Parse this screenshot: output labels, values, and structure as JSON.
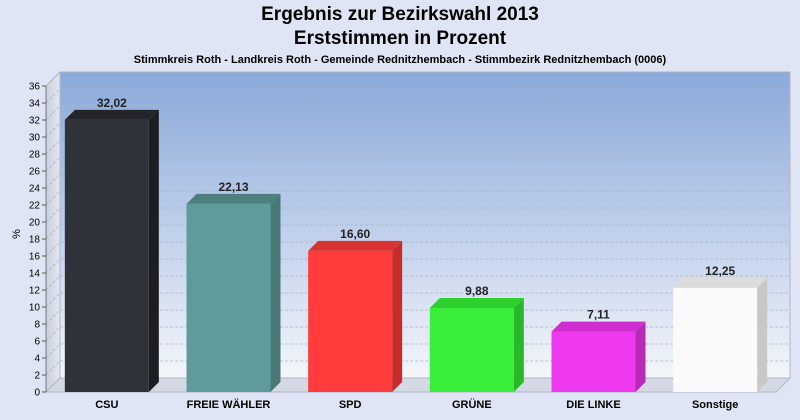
{
  "chart_data": {
    "type": "bar",
    "title": "Ergebnis zur Bezirkswahl 2013",
    "subtitle": "Erststimmen in Prozent",
    "caption": "Stimmkreis Roth - Landkreis Roth - Gemeinde Rednitzhembach - Stimmbezirk Rednitzhembach (0006)",
    "ylabel": "%",
    "xlabel": "",
    "ylim": [
      0,
      36
    ],
    "ytick_step": 2,
    "grid": true,
    "categories": [
      "CSU",
      "FREIE WÄHLER",
      "SPD",
      "GRÜNE",
      "DIE LINKE",
      "Sonstige"
    ],
    "values": [
      32.02,
      22.13,
      16.6,
      9.88,
      7.11,
      12.25
    ],
    "value_labels": [
      "32,02",
      "22,13",
      "16,60",
      "9,88",
      "7,11",
      "12,25"
    ],
    "colors": [
      "#2f3239",
      "#5f9b9a",
      "#ff3b3b",
      "#39ee39",
      "#ee39ee",
      "#fafafa"
    ],
    "side_colors": [
      "#1c1e22",
      "#4a7877",
      "#c92a2a",
      "#29b829",
      "#b82ab8",
      "#c8c8c8"
    ],
    "top_colors": [
      "#23252a",
      "#4d7f7e",
      "#d93232",
      "#2dd02d",
      "#d02dd0",
      "#dcdcdc"
    ]
  }
}
